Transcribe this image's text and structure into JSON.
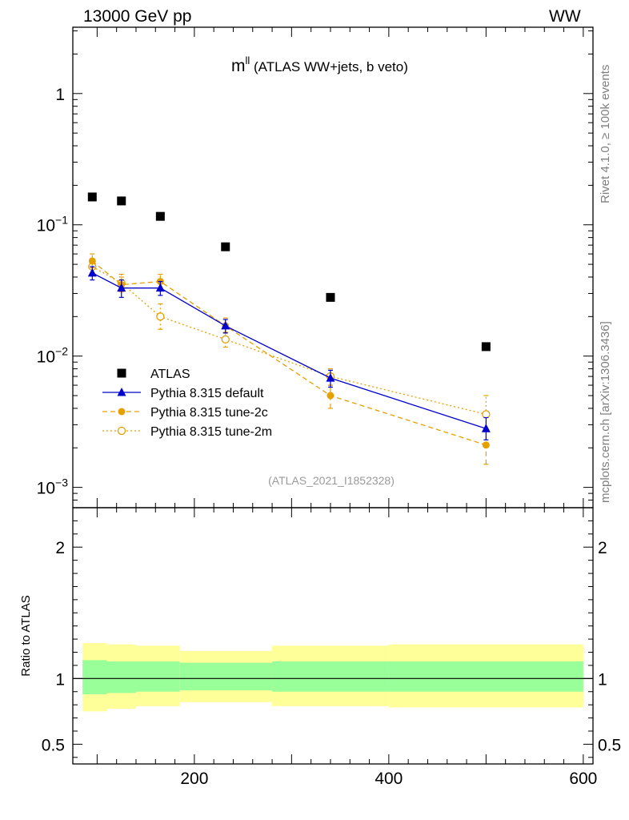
{
  "header": {
    "left": "13000 GeV pp",
    "right": "WW"
  },
  "side_labels": {
    "rivet": "Rivet 4.1.0, ≥ 100k events",
    "mcplots": "mcplots.cern.ch [arXiv:1306.3436]"
  },
  "colors": {
    "atlas": "#000000",
    "default": "#0000cc",
    "tune2c": "#e5a000",
    "tune2m": "#e5a000",
    "band_inner": "#99ff99",
    "band_outer": "#ffff99"
  },
  "chart_data": [
    {
      "type": "scatter",
      "title": "m",
      "title_sup": "ll",
      "title_rest": " (ATLAS WW+jets, b veto)",
      "analysis_label": "(ATLAS_2021_I1852328)",
      "xlim": [
        75,
        610
      ],
      "ylim": [
        0.0007,
        3.2
      ],
      "yscale": "log",
      "ytick_labels": [
        {
          "base": "10",
          "exp": "−3",
          "value": 0.001
        },
        {
          "base": "10",
          "exp": "−2",
          "value": 0.01
        },
        {
          "base": "10",
          "exp": "−1",
          "value": 0.1
        },
        {
          "base": "1",
          "exp": "",
          "value": 1
        }
      ],
      "legend": [
        "ATLAS",
        "Pythia 8.315 default",
        "Pythia 8.315 tune-2c",
        "Pythia 8.315 tune-2m"
      ],
      "series": [
        {
          "name": "ATLAS",
          "x": [
            95,
            125,
            165,
            232,
            340,
            500
          ],
          "y": [
            0.163,
            0.152,
            0.116,
            0.068,
            0.028,
            0.0118
          ]
        },
        {
          "name": "Pythia 8.315 default",
          "x": [
            95,
            125,
            165,
            232,
            340,
            500
          ],
          "y": [
            0.043,
            0.033,
            0.033,
            0.017,
            0.0068,
            0.0028
          ],
          "err_low": [
            0.038,
            0.028,
            0.029,
            0.015,
            0.0058,
            0.0023
          ],
          "err_high": [
            0.048,
            0.038,
            0.037,
            0.019,
            0.0078,
            0.0034
          ]
        },
        {
          "name": "Pythia 8.315 tune-2c",
          "x": [
            95,
            125,
            165,
            232,
            340,
            500
          ],
          "y": [
            0.053,
            0.035,
            0.037,
            0.017,
            0.005,
            0.0021
          ],
          "err_low": [
            0.047,
            0.031,
            0.033,
            0.015,
            0.004,
            0.0015
          ],
          "err_high": [
            0.06,
            0.04,
            0.042,
            0.0195,
            0.006,
            0.0028
          ]
        },
        {
          "name": "Pythia 8.315 tune-2m",
          "x": [
            95,
            125,
            165,
            232,
            340,
            500
          ],
          "y": [
            0.048,
            0.036,
            0.02,
            0.0134,
            0.007,
            0.0036
          ],
          "err_low": [
            0.043,
            0.031,
            0.016,
            0.0117,
            0.006,
            0.0027
          ],
          "err_high": [
            0.054,
            0.042,
            0.025,
            0.0152,
            0.008,
            0.005
          ]
        }
      ]
    },
    {
      "type": "area",
      "ylabel": "Ratio to ATLAS",
      "xlim": [
        75,
        610
      ],
      "ylim": [
        0.35,
        2.3
      ],
      "x_ticks": [
        200,
        400,
        600
      ],
      "y_ticks": [
        0.5,
        1,
        2
      ],
      "y_tick_labels": [
        "0.5",
        "1",
        "2"
      ],
      "bins": [
        {
          "lo": 85,
          "hi": 110,
          "inner": [
            0.88,
            1.14
          ],
          "outer": [
            0.75,
            1.27
          ]
        },
        {
          "lo": 110,
          "hi": 140,
          "inner": [
            0.89,
            1.13
          ],
          "outer": [
            0.77,
            1.26
          ]
        },
        {
          "lo": 140,
          "hi": 185,
          "inner": [
            0.9,
            1.13
          ],
          "outer": [
            0.79,
            1.25
          ]
        },
        {
          "lo": 185,
          "hi": 280,
          "inner": [
            0.91,
            1.12
          ],
          "outer": [
            0.82,
            1.21
          ]
        },
        {
          "lo": 280,
          "hi": 400,
          "inner": [
            0.9,
            1.13
          ],
          "outer": [
            0.79,
            1.25
          ]
        },
        {
          "lo": 400,
          "hi": 600,
          "inner": [
            0.9,
            1.13
          ],
          "outer": [
            0.78,
            1.26
          ]
        }
      ]
    }
  ]
}
